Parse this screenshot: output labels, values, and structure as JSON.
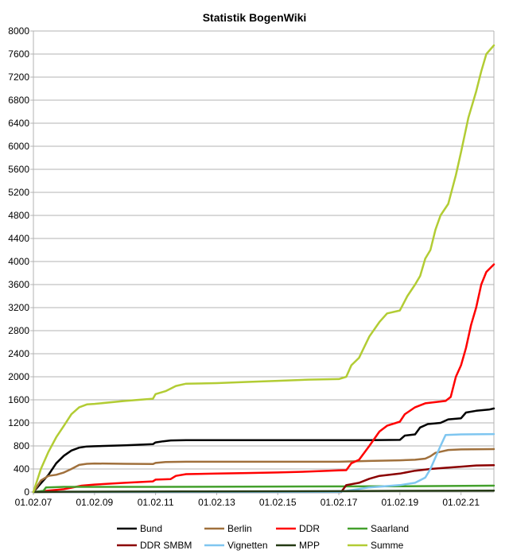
{
  "chart_data": {
    "type": "line",
    "title": "Statistik BogenWiki",
    "xlabel": "",
    "ylabel": "",
    "xlim": [
      "2007-02-01",
      "2022-03-01"
    ],
    "ylim": [
      0,
      8000
    ],
    "y_ticks": [
      0,
      400,
      800,
      1200,
      1600,
      2000,
      2400,
      2800,
      3200,
      3600,
      4000,
      4400,
      4800,
      5200,
      5600,
      6000,
      6400,
      6800,
      7200,
      7600,
      8000
    ],
    "x_ticks": [
      {
        "date": "2007-02-01",
        "label": "01.02.07"
      },
      {
        "date": "2009-02-01",
        "label": "01.02.09"
      },
      {
        "date": "2011-02-01",
        "label": "01.02.11"
      },
      {
        "date": "2013-02-01",
        "label": "01.02.13"
      },
      {
        "date": "2015-02-01",
        "label": "01.02.15"
      },
      {
        "date": "2017-02-01",
        "label": "01.02.17"
      },
      {
        "date": "2019-02-01",
        "label": "01.02.19"
      },
      {
        "date": "2021-02-01",
        "label": "01.02.21"
      }
    ],
    "grid": "horizontal",
    "legend_position": "bottom",
    "series": [
      {
        "name": "Bund",
        "color": "#000000",
        "points": [
          [
            "2007-02-01",
            0
          ],
          [
            "2007-05-01",
            150
          ],
          [
            "2007-08-01",
            300
          ],
          [
            "2007-11-01",
            500
          ],
          [
            "2008-02-01",
            630
          ],
          [
            "2008-05-01",
            720
          ],
          [
            "2008-08-01",
            770
          ],
          [
            "2008-11-01",
            790
          ],
          [
            "2009-02-01",
            795
          ],
          [
            "2010-02-01",
            810
          ],
          [
            "2011-01-01",
            830
          ],
          [
            "2011-02-01",
            860
          ],
          [
            "2011-05-01",
            880
          ],
          [
            "2011-08-01",
            895
          ],
          [
            "2012-02-01",
            900
          ],
          [
            "2014-02-01",
            900
          ],
          [
            "2016-02-01",
            900
          ],
          [
            "2018-02-01",
            900
          ],
          [
            "2019-02-01",
            905
          ],
          [
            "2019-04-01",
            980
          ],
          [
            "2019-08-01",
            1000
          ],
          [
            "2019-10-01",
            1120
          ],
          [
            "2020-01-01",
            1180
          ],
          [
            "2020-06-01",
            1200
          ],
          [
            "2020-09-01",
            1260
          ],
          [
            "2021-02-01",
            1280
          ],
          [
            "2021-04-01",
            1380
          ],
          [
            "2021-08-01",
            1410
          ],
          [
            "2022-01-01",
            1430
          ],
          [
            "2022-03-01",
            1450
          ]
        ]
      },
      {
        "name": "Berlin",
        "color": "#a0703c",
        "points": [
          [
            "2007-02-01",
            0
          ],
          [
            "2007-05-01",
            200
          ],
          [
            "2007-08-01",
            280
          ],
          [
            "2007-11-01",
            300
          ],
          [
            "2008-02-01",
            340
          ],
          [
            "2008-05-01",
            400
          ],
          [
            "2008-08-01",
            470
          ],
          [
            "2008-11-01",
            490
          ],
          [
            "2009-02-01",
            495
          ],
          [
            "2010-02-01",
            490
          ],
          [
            "2011-01-01",
            485
          ],
          [
            "2011-02-01",
            505
          ],
          [
            "2011-06-01",
            520
          ],
          [
            "2012-02-01",
            525
          ],
          [
            "2014-02-01",
            525
          ],
          [
            "2016-02-01",
            525
          ],
          [
            "2017-02-01",
            525
          ],
          [
            "2018-02-01",
            540
          ],
          [
            "2019-02-01",
            550
          ],
          [
            "2019-08-01",
            560
          ],
          [
            "2019-12-01",
            580
          ],
          [
            "2020-02-01",
            620
          ],
          [
            "2020-04-01",
            680
          ],
          [
            "2020-06-01",
            700
          ],
          [
            "2020-09-01",
            730
          ],
          [
            "2021-02-01",
            740
          ],
          [
            "2022-03-01",
            745
          ]
        ]
      },
      {
        "name": "DDR",
        "color": "#ff0000",
        "points": [
          [
            "2007-02-01",
            0
          ],
          [
            "2008-02-01",
            50
          ],
          [
            "2008-09-01",
            110
          ],
          [
            "2009-02-01",
            130
          ],
          [
            "2010-02-01",
            160
          ],
          [
            "2011-01-01",
            185
          ],
          [
            "2011-02-01",
            215
          ],
          [
            "2011-08-01",
            225
          ],
          [
            "2011-10-01",
            280
          ],
          [
            "2012-02-01",
            310
          ],
          [
            "2013-02-01",
            320
          ],
          [
            "2014-02-01",
            330
          ],
          [
            "2015-02-01",
            340
          ],
          [
            "2016-02-01",
            355
          ],
          [
            "2017-02-01",
            375
          ],
          [
            "2017-05-01",
            380
          ],
          [
            "2017-07-01",
            500
          ],
          [
            "2017-10-01",
            560
          ],
          [
            "2018-02-01",
            800
          ],
          [
            "2018-06-01",
            1050
          ],
          [
            "2018-09-01",
            1150
          ],
          [
            "2019-02-01",
            1220
          ],
          [
            "2019-04-01",
            1350
          ],
          [
            "2019-08-01",
            1470
          ],
          [
            "2019-12-01",
            1540
          ],
          [
            "2020-04-01",
            1560
          ],
          [
            "2020-08-01",
            1580
          ],
          [
            "2020-10-01",
            1650
          ],
          [
            "2020-12-01",
            2000
          ],
          [
            "2021-02-01",
            2200
          ],
          [
            "2021-04-01",
            2500
          ],
          [
            "2021-06-01",
            2900
          ],
          [
            "2021-08-01",
            3200
          ],
          [
            "2021-10-01",
            3600
          ],
          [
            "2021-12-01",
            3820
          ],
          [
            "2022-03-01",
            3950
          ]
        ]
      },
      {
        "name": "Saarland",
        "color": "#43a02c",
        "points": [
          [
            "2007-02-01",
            0
          ],
          [
            "2007-06-01",
            20
          ],
          [
            "2007-07-01",
            80
          ],
          [
            "2008-02-01",
            90
          ],
          [
            "2011-02-01",
            90
          ],
          [
            "2015-02-01",
            95
          ],
          [
            "2019-02-01",
            100
          ],
          [
            "2022-03-01",
            110
          ]
        ]
      },
      {
        "name": "DDR SMBM",
        "color": "#8b0000",
        "points": [
          [
            "2007-02-01",
            0
          ],
          [
            "2017-03-01",
            0
          ],
          [
            "2017-05-01",
            120
          ],
          [
            "2017-10-01",
            160
          ],
          [
            "2018-02-01",
            230
          ],
          [
            "2018-06-01",
            280
          ],
          [
            "2019-02-01",
            320
          ],
          [
            "2019-08-01",
            370
          ],
          [
            "2020-02-01",
            400
          ],
          [
            "2020-08-01",
            420
          ],
          [
            "2021-02-01",
            440
          ],
          [
            "2021-08-01",
            460
          ],
          [
            "2022-03-01",
            465
          ]
        ]
      },
      {
        "name": "Vignetten",
        "color": "#7fc6f0",
        "points": [
          [
            "2007-02-01",
            0
          ],
          [
            "2017-02-01",
            0
          ],
          [
            "2018-02-01",
            80
          ],
          [
            "2018-08-01",
            100
          ],
          [
            "2019-02-01",
            120
          ],
          [
            "2019-08-01",
            160
          ],
          [
            "2019-12-01",
            250
          ],
          [
            "2020-02-01",
            400
          ],
          [
            "2020-04-01",
            600
          ],
          [
            "2020-06-01",
            800
          ],
          [
            "2020-08-01",
            990
          ],
          [
            "2021-02-01",
            1000
          ],
          [
            "2022-03-01",
            1005
          ]
        ]
      },
      {
        "name": "MPP",
        "color": "#243a14",
        "points": [
          [
            "2007-02-01",
            0
          ],
          [
            "2008-02-01",
            5
          ],
          [
            "2012-02-01",
            10
          ],
          [
            "2017-02-01",
            15
          ],
          [
            "2019-02-01",
            20
          ],
          [
            "2022-03-01",
            25
          ]
        ]
      },
      {
        "name": "Summe",
        "color": "#b2cc34",
        "points": [
          [
            "2007-02-01",
            0
          ],
          [
            "2007-05-01",
            400
          ],
          [
            "2007-08-01",
            700
          ],
          [
            "2007-11-01",
            950
          ],
          [
            "2008-02-01",
            1150
          ],
          [
            "2008-05-01",
            1350
          ],
          [
            "2008-08-01",
            1470
          ],
          [
            "2008-11-01",
            1520
          ],
          [
            "2009-02-01",
            1530
          ],
          [
            "2010-02-01",
            1580
          ],
          [
            "2011-01-01",
            1620
          ],
          [
            "2011-02-01",
            1700
          ],
          [
            "2011-06-01",
            1750
          ],
          [
            "2011-10-01",
            1840
          ],
          [
            "2012-02-01",
            1880
          ],
          [
            "2013-02-01",
            1890
          ],
          [
            "2014-02-01",
            1910
          ],
          [
            "2015-02-01",
            1930
          ],
          [
            "2016-02-01",
            1950
          ],
          [
            "2017-02-01",
            1960
          ],
          [
            "2017-05-01",
            2000
          ],
          [
            "2017-07-01",
            2200
          ],
          [
            "2017-10-01",
            2330
          ],
          [
            "2018-02-01",
            2700
          ],
          [
            "2018-06-01",
            2950
          ],
          [
            "2018-09-01",
            3100
          ],
          [
            "2019-02-01",
            3150
          ],
          [
            "2019-05-01",
            3400
          ],
          [
            "2019-08-01",
            3600
          ],
          [
            "2019-10-01",
            3750
          ],
          [
            "2019-12-01",
            4050
          ],
          [
            "2020-02-01",
            4200
          ],
          [
            "2020-04-01",
            4550
          ],
          [
            "2020-06-01",
            4800
          ],
          [
            "2020-09-01",
            5000
          ],
          [
            "2020-12-01",
            5500
          ],
          [
            "2021-02-01",
            5900
          ],
          [
            "2021-05-01",
            6500
          ],
          [
            "2021-08-01",
            6950
          ],
          [
            "2021-10-01",
            7300
          ],
          [
            "2021-12-01",
            7600
          ],
          [
            "2022-03-01",
            7750
          ]
        ]
      }
    ]
  }
}
